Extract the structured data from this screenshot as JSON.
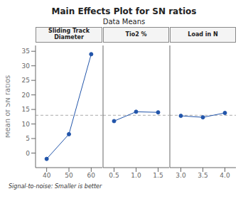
{
  "chart_data": {
    "type": "line",
    "title": "Main Effects Plot for SN ratios",
    "subtitle": "Data Means",
    "ylabel": "Mean of SN ratios",
    "footnote": "Signal-to-noise: Smaller is better",
    "color": "#2255aa",
    "marker": "circle",
    "line_style": "solid",
    "ylim": [
      -5,
      37
    ],
    "yticks": [
      0,
      5,
      10,
      15,
      20,
      25,
      30,
      35
    ],
    "reference_line": {
      "y": 13.0,
      "color": "#aaaaaa",
      "line_style": "dashed"
    },
    "panels": [
      {
        "label": "Sliding Track Diameter",
        "x": [
          40,
          50,
          60
        ],
        "xlim": [
          35,
          65
        ],
        "xticks": [
          40,
          50,
          60
        ],
        "values": [
          -2.0,
          6.5,
          34.0
        ]
      },
      {
        "label": "Tio2 %",
        "x": [
          0.5,
          1.0,
          1.5
        ],
        "xlim": [
          0.25,
          1.75
        ],
        "xticks": [
          0.5,
          {
            "value": 1.0,
            "label": "1.0"
          },
          1.5
        ],
        "values": [
          11.0,
          14.2,
          14.0
        ]
      },
      {
        "label": "Load in N",
        "x": [
          3.0,
          3.5,
          4.0
        ],
        "xlim": [
          2.75,
          4.25
        ],
        "xticks": [
          {
            "value": 3.0,
            "label": "3.0"
          },
          3.5,
          {
            "value": 4.0,
            "label": "4.0"
          }
        ],
        "values": [
          12.8,
          12.3,
          13.8
        ]
      }
    ]
  }
}
